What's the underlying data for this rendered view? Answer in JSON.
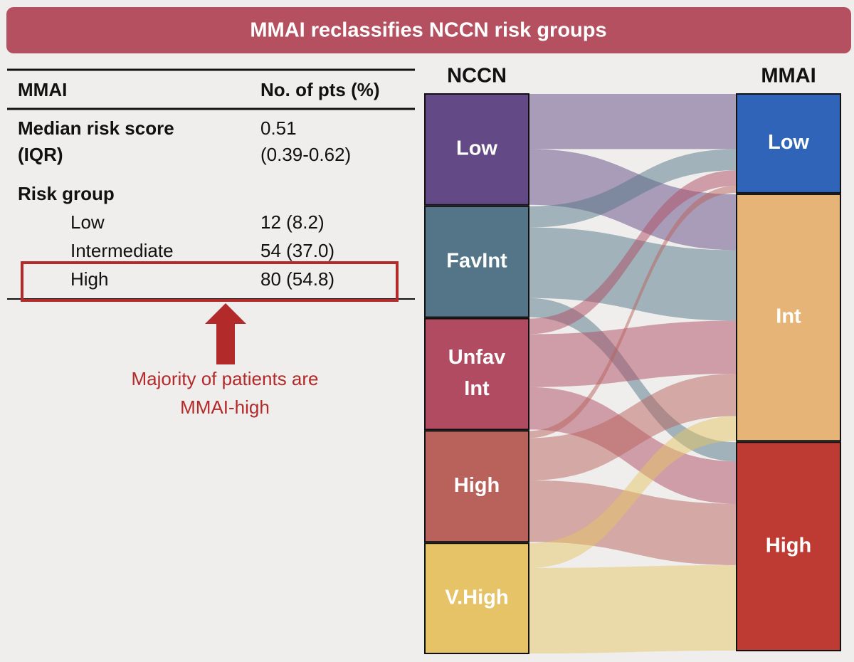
{
  "header": {
    "title": "MMAI reclassifies NCCN risk groups"
  },
  "table": {
    "header": [
      "MMAI",
      "No. of pts (%)"
    ],
    "median": {
      "label": [
        "Median risk score",
        "(IQR)"
      ],
      "value": [
        "0.51",
        "(0.39-0.62)"
      ]
    },
    "group_title": "Risk group",
    "rows": [
      [
        "Low",
        "12 (8.2)"
      ],
      [
        "Intermediate",
        "54 (37.0)"
      ],
      [
        "High",
        "80 (54.8)"
      ]
    ]
  },
  "annotation": [
    "Majority of patients are",
    "MMAI-high"
  ],
  "diagram": {
    "left_title": "NCCN",
    "right_title": "MMAI",
    "left_nodes": [
      {
        "label": [
          "Low"
        ],
        "color": "#634a86"
      },
      {
        "label": [
          "FavInt"
        ],
        "color": "#537587"
      },
      {
        "label": [
          "Unfav",
          "Int"
        ],
        "color": "#b04b62"
      },
      {
        "label": [
          "High"
        ],
        "color": "#b9625b"
      },
      {
        "label": [
          "V.High"
        ],
        "color": "#e6c366"
      }
    ],
    "right_nodes": [
      {
        "label": [
          "Low"
        ],
        "color": "#2f64b8"
      },
      {
        "label": [
          "Int"
        ],
        "color": "#e7b477"
      },
      {
        "label": [
          "High"
        ],
        "color": "#bd3b33"
      }
    ],
    "links": [
      {
        "source": 0,
        "target": 0,
        "value": 78
      },
      {
        "source": 0,
        "target": 1,
        "value": 79
      },
      {
        "source": 1,
        "target": 0,
        "value": 30
      },
      {
        "source": 1,
        "target": 1,
        "value": 100
      },
      {
        "source": 1,
        "target": 2,
        "value": 27
      },
      {
        "source": 2,
        "target": 0,
        "value": 22
      },
      {
        "source": 2,
        "target": 1,
        "value": 75
      },
      {
        "source": 2,
        "target": 2,
        "value": 60
      },
      {
        "source": 3,
        "target": 0,
        "value": 10
      },
      {
        "source": 3,
        "target": 1,
        "value": 60
      },
      {
        "source": 3,
        "target": 2,
        "value": 87
      },
      {
        "source": 4,
        "target": 1,
        "value": 35
      },
      {
        "source": 4,
        "target": 2,
        "value": 121
      }
    ]
  }
}
